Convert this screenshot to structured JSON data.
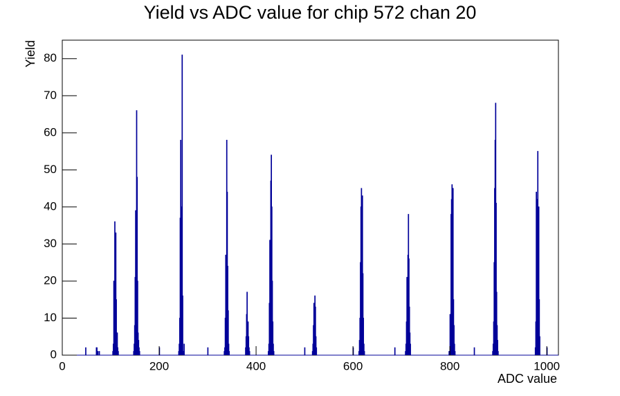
{
  "chart_data": {
    "type": "histogram",
    "title": "Yield vs ADC value for chip 572 chan 20",
    "x_label": "ADC value",
    "y_label": "Yield",
    "color": "#000099",
    "xlim": [
      0,
      1024
    ],
    "ylim": [
      0,
      85
    ],
    "xticks": [
      0,
      200,
      400,
      600,
      800,
      1000
    ],
    "yticks": [
      0,
      10,
      20,
      30,
      40,
      50,
      60,
      70,
      80
    ],
    "bins": [
      0,
      48,
      49,
      70,
      71,
      72,
      73,
      74,
      75,
      76,
      77,
      104,
      105,
      106,
      107,
      108,
      109,
      110,
      111,
      112,
      113,
      114,
      115,
      116,
      147,
      148,
      149,
      150,
      151,
      152,
      153,
      154,
      155,
      156,
      157,
      158,
      159,
      160,
      200,
      201,
      240,
      241,
      242,
      243,
      244,
      245,
      246,
      247,
      248,
      249,
      250,
      251,
      252,
      300,
      301,
      334,
      335,
      336,
      337,
      338,
      339,
      340,
      341,
      342,
      343,
      344,
      345,
      378,
      379,
      380,
      381,
      382,
      383,
      384,
      385,
      386,
      387,
      425,
      426,
      427,
      428,
      429,
      430,
      431,
      432,
      433,
      434,
      435,
      436,
      437,
      500,
      501,
      516,
      517,
      518,
      519,
      520,
      521,
      522,
      523,
      524,
      525,
      600,
      601,
      612,
      613,
      614,
      615,
      616,
      617,
      618,
      619,
      620,
      621,
      622,
      623,
      624,
      686,
      687,
      708,
      709,
      710,
      711,
      712,
      713,
      714,
      715,
      716,
      717,
      718,
      719,
      798,
      799,
      800,
      801,
      802,
      803,
      804,
      805,
      806,
      807,
      808,
      809,
      810,
      811,
      850,
      851,
      888,
      889,
      890,
      891,
      892,
      893,
      894,
      895,
      896,
      897,
      898,
      899,
      900,
      976,
      977,
      978,
      979,
      980,
      981,
      982,
      983,
      984,
      985,
      986,
      1000,
      1001,
      1024
    ],
    "values": [
      0,
      2,
      0,
      2,
      2,
      0,
      1,
      0,
      0,
      1,
      0,
      1,
      3,
      20,
      11,
      36,
      27,
      33,
      15,
      6,
      6,
      2,
      1,
      0,
      1,
      3,
      8,
      21,
      39,
      30,
      66,
      48,
      20,
      6,
      4,
      2,
      1,
      0,
      2,
      0,
      1,
      3,
      10,
      37,
      58,
      36,
      40,
      81,
      16,
      0,
      1,
      3,
      0,
      2,
      0,
      1,
      2,
      10,
      27,
      19,
      58,
      44,
      24,
      12,
      3,
      1,
      0,
      2,
      5,
      11,
      17,
      6,
      9,
      5,
      2,
      1,
      0,
      1,
      3,
      14,
      31,
      28,
      47,
      54,
      40,
      20,
      9,
      3,
      1,
      0,
      2,
      0,
      1,
      3,
      8,
      14,
      10,
      16,
      13,
      5,
      2,
      0,
      2,
      0,
      1,
      4,
      10,
      25,
      40,
      45,
      39,
      43,
      22,
      10,
      3,
      1,
      0,
      2,
      0,
      1,
      3,
      9,
      21,
      16,
      27,
      38,
      26,
      13,
      6,
      3,
      0,
      1,
      1,
      11,
      9,
      38,
      42,
      46,
      31,
      45,
      15,
      8,
      3,
      1,
      0,
      2,
      0,
      1,
      3,
      9,
      25,
      45,
      58,
      68,
      41,
      17,
      8,
      4,
      1,
      0,
      2,
      9,
      44,
      42,
      28,
      55,
      40,
      40,
      15,
      5,
      0,
      2,
      0
    ]
  }
}
